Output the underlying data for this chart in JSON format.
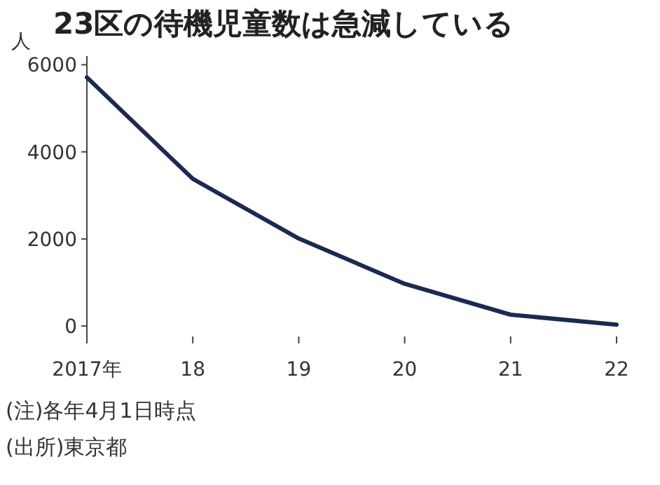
{
  "chart_data": {
    "type": "line",
    "title": "23区の待機児童数は急減している",
    "ylabel": "人",
    "categories": [
      "2017年",
      "18",
      "19",
      "20",
      "21",
      "22"
    ],
    "series": [
      {
        "color": "#1b2a52",
        "values": [
          5710,
          3380,
          2010,
          970,
          260,
          30
        ]
      }
    ],
    "ylim": [
      -400,
      6200
    ],
    "yticks": [
      0,
      2000,
      4000,
      6000
    ],
    "grid": false,
    "marker": "none",
    "line_style": "solid",
    "annotations": [
      "(注)各年4月1日時点",
      "(出所)東京都"
    ]
  }
}
